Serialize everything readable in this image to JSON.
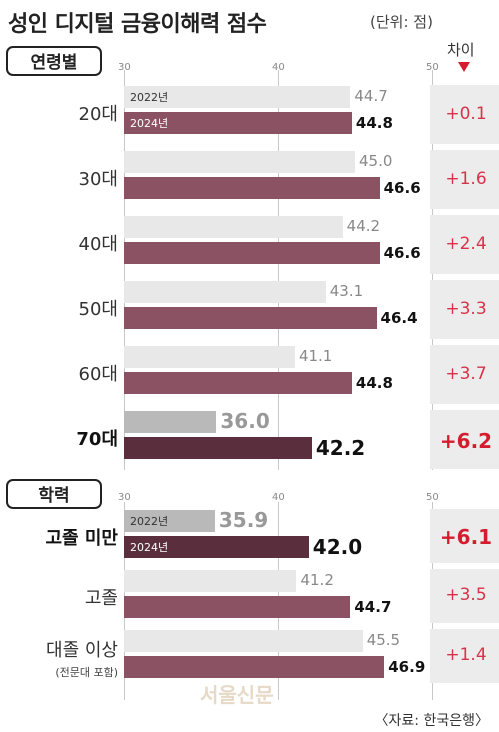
{
  "title": "성인 디지털 금융이해력 점수",
  "unit": "(단위: 점)",
  "diff_header": "차이",
  "source": "〈자료: 한국은행〉",
  "watermark": "서울신문",
  "colors": {
    "bar_2022": "#e8e8e8",
    "bar_2024": "#8b5264",
    "bar_2022_highlight": "#b9b9b9",
    "bar_2024_highlight": "#5a2e3d",
    "diff": "#d8324a"
  },
  "chart_data": [
    {
      "type": "bar",
      "title": "연령별",
      "axis_ticks": [
        "30",
        "40",
        "50"
      ],
      "xlim": [
        30,
        50
      ],
      "series_labels": [
        "2022년",
        "2024년"
      ],
      "categories": [
        "20대",
        "30대",
        "40대",
        "50대",
        "60대",
        "70대"
      ],
      "series": [
        {
          "name": "2022년",
          "values": [
            44.7,
            45.0,
            44.2,
            43.1,
            41.1,
            36.0
          ],
          "labels": [
            "44.7",
            "45.0",
            "44.2",
            "43.1",
            "41.1",
            "36.0"
          ]
        },
        {
          "name": "2024년",
          "values": [
            44.8,
            46.6,
            46.6,
            46.4,
            44.8,
            42.2
          ],
          "labels": [
            "44.8",
            "46.6",
            "46.6",
            "46.4",
            "44.8",
            "42.2"
          ]
        }
      ],
      "diff": [
        "+0.1",
        "+1.6",
        "+2.4",
        "+3.3",
        "+3.7",
        "+6.2"
      ],
      "highlight_index": 5
    },
    {
      "type": "bar",
      "title": "학력",
      "axis_ticks": [
        "30",
        "40",
        "50"
      ],
      "xlim": [
        30,
        50
      ],
      "series_labels": [
        "2022년",
        "2024년"
      ],
      "categories": [
        "고졸 미만",
        "고졸",
        "대졸 이상"
      ],
      "category_notes": [
        "",
        "",
        "(전문대 포함)"
      ],
      "series": [
        {
          "name": "2022년",
          "values": [
            35.9,
            41.2,
            45.5
          ],
          "labels": [
            "35.9",
            "41.2",
            "45.5"
          ]
        },
        {
          "name": "2024년",
          "values": [
            42.0,
            44.7,
            46.9
          ],
          "labels": [
            "42.0",
            "44.7",
            "46.9"
          ]
        }
      ],
      "diff": [
        "+6.1",
        "+3.5",
        "+1.4"
      ],
      "highlight_index": 0
    }
  ]
}
